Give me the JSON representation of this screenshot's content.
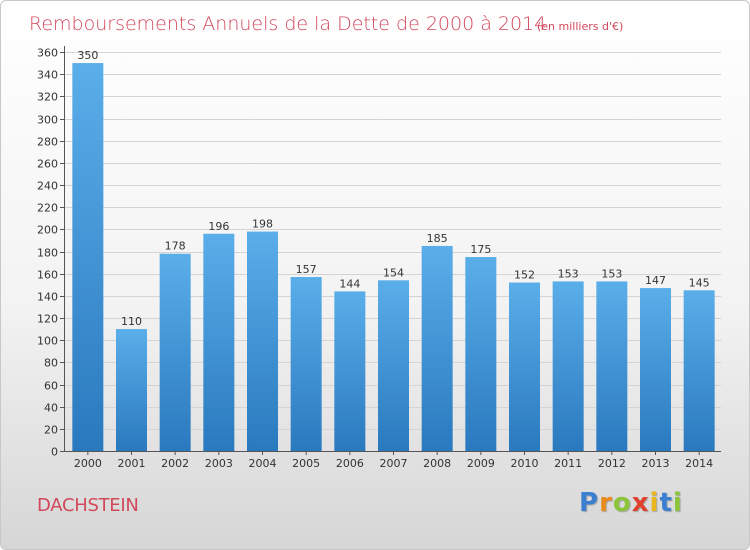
{
  "chart_data": {
    "type": "bar",
    "title": "Remboursements Annuels de la Dette de 2000 à 2014",
    "subtitle": "(en milliers d'€)",
    "categories": [
      "2000",
      "2001",
      "2002",
      "2003",
      "2004",
      "2005",
      "2006",
      "2007",
      "2008",
      "2009",
      "2010",
      "2011",
      "2012",
      "2013",
      "2014"
    ],
    "values": [
      350,
      110,
      178,
      196,
      198,
      157,
      144,
      154,
      185,
      175,
      152,
      153,
      153,
      147,
      145
    ],
    "xlabel": "",
    "ylabel": "",
    "ylim": [
      0,
      360
    ],
    "yticks": [
      0,
      20,
      40,
      60,
      80,
      100,
      120,
      140,
      160,
      180,
      200,
      220,
      240,
      260,
      280,
      300,
      320,
      340,
      360
    ],
    "grid": true,
    "bar_color_top": "#5aaee9",
    "bar_color_bottom": "#2a79bf"
  },
  "commune": "DACHSTEIN",
  "logo": {
    "letters": [
      "P",
      "r",
      "o",
      "x",
      "i",
      "t",
      "i"
    ],
    "colors": [
      "#3b7fd0",
      "#e98a1c",
      "#8cc43c",
      "#e0412d",
      "#e9b61c",
      "#3b7fd0",
      "#8cc43c"
    ]
  }
}
